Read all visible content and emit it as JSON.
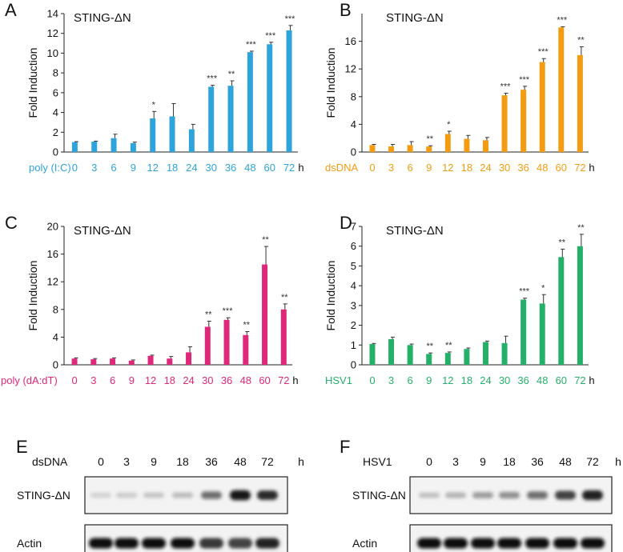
{
  "chart_data": [
    {
      "panel": "A",
      "type": "bar",
      "title": "STING-ΔN",
      "ylabel": "Fold Induction",
      "xlabel_prefix": "poly (I:C)",
      "x_unit": "h",
      "categories": [
        "0",
        "3",
        "6",
        "9",
        "12",
        "18",
        "24",
        "30",
        "36",
        "48",
        "60",
        "72"
      ],
      "values": [
        1.0,
        1.05,
        1.4,
        0.9,
        3.4,
        3.6,
        2.3,
        6.6,
        6.7,
        10.1,
        10.9,
        12.3
      ],
      "errors": [
        0.05,
        0.05,
        0.4,
        0.1,
        0.7,
        1.3,
        0.5,
        0.15,
        0.5,
        0.1,
        0.2,
        0.5
      ],
      "significance": [
        "",
        "",
        "",
        "",
        "*",
        "",
        "",
        "***",
        "**",
        "***",
        "***",
        "***"
      ],
      "ylim": [
        0,
        14
      ],
      "yticks": [
        0,
        2,
        4,
        6,
        8,
        10,
        12,
        14
      ],
      "color": "#2ea3dc",
      "label_color": "#2ea3dc"
    },
    {
      "panel": "B",
      "type": "bar",
      "title": "STING-ΔN",
      "ylabel": "Fold Induction",
      "xlabel_prefix": "dsDNA",
      "x_unit": "h",
      "categories": [
        "0",
        "3",
        "6",
        "9",
        "12",
        "18",
        "24",
        "30",
        "36",
        "48",
        "60",
        "72"
      ],
      "values": [
        1.0,
        0.8,
        1.0,
        0.8,
        2.6,
        1.9,
        1.7,
        8.2,
        9.0,
        13.0,
        18.0,
        14.0
      ],
      "errors": [
        0.1,
        0.3,
        0.5,
        0.1,
        0.4,
        0.5,
        0.4,
        0.3,
        0.5,
        0.5,
        0.1,
        1.2
      ],
      "significance": [
        "",
        "",
        "",
        "**",
        "*",
        "",
        "",
        "***",
        "***",
        "***",
        "***",
        "**"
      ],
      "ylim": [
        0,
        20
      ],
      "yticks": [
        0,
        4,
        8,
        12,
        16
      ],
      "color": "#f39c12",
      "label_color": "#f39c12"
    },
    {
      "panel": "C",
      "type": "bar",
      "title": "STING-ΔN",
      "ylabel": "Fold Induction",
      "xlabel_prefix": "poly (dA:dT)",
      "x_unit": "h",
      "categories": [
        "0",
        "3",
        "6",
        "9",
        "12",
        "18",
        "24",
        "30",
        "36",
        "48",
        "60",
        "72"
      ],
      "values": [
        0.9,
        0.8,
        0.9,
        0.6,
        1.3,
        0.9,
        1.8,
        5.5,
        6.5,
        4.3,
        14.5,
        8.0
      ],
      "errors": [
        0.1,
        0.1,
        0.1,
        0.1,
        0.1,
        0.3,
        0.8,
        0.8,
        0.3,
        0.5,
        2.6,
        0.8
      ],
      "significance": [
        "",
        "",
        "",
        "",
        "",
        "",
        "",
        "**",
        "***",
        "**",
        "**",
        "**"
      ],
      "ylim": [
        0,
        20
      ],
      "yticks": [
        0,
        4,
        8,
        12,
        16,
        20
      ],
      "color": "#e0287a",
      "label_color": "#e0287a"
    },
    {
      "panel": "D",
      "type": "bar",
      "title": "STING-ΔN",
      "ylabel": "Fold Induction",
      "xlabel_prefix": "HSV1",
      "x_unit": "h",
      "categories": [
        "0",
        "3",
        "6",
        "9",
        "12",
        "18",
        "24",
        "30",
        "36",
        "48",
        "60",
        "72"
      ],
      "values": [
        1.05,
        1.3,
        1.0,
        0.55,
        0.6,
        0.8,
        1.15,
        1.1,
        3.3,
        3.1,
        5.45,
        6.0
      ],
      "errors": [
        0.03,
        0.1,
        0.05,
        0.05,
        0.05,
        0.05,
        0.05,
        0.35,
        0.07,
        0.45,
        0.4,
        0.6
      ],
      "significance": [
        "",
        "",
        "",
        "**",
        "**",
        "",
        "",
        "",
        "***",
        "*",
        "**",
        "**"
      ],
      "ylim": [
        0,
        7
      ],
      "yticks": [
        0,
        1,
        2,
        3,
        4,
        5,
        6,
        7
      ],
      "color": "#25b06a",
      "label_color": "#25b06a"
    }
  ],
  "blots": [
    {
      "panel": "E",
      "treatment": "dsDNA",
      "unit": "h",
      "timepoints": [
        "0",
        "3",
        "9",
        "18",
        "36",
        "48",
        "72"
      ],
      "rows": [
        {
          "label": "STING-ΔN",
          "intensities": [
            0.12,
            0.15,
            0.18,
            0.22,
            0.55,
            0.95,
            0.85
          ]
        },
        {
          "label": "Actin",
          "intensities": [
            1.0,
            1.0,
            1.0,
            1.0,
            0.8,
            0.75,
            0.9
          ]
        }
      ]
    },
    {
      "panel": "F",
      "treatment": "HSV1",
      "unit": "h",
      "timepoints": [
        "0",
        "3",
        "9",
        "18",
        "36",
        "48",
        "72"
      ],
      "rows": [
        {
          "label": "STING-ΔN",
          "intensities": [
            0.2,
            0.25,
            0.35,
            0.4,
            0.55,
            0.75,
            0.9
          ]
        },
        {
          "label": "Actin",
          "intensities": [
            1.0,
            1.0,
            1.0,
            1.0,
            1.0,
            1.0,
            1.0
          ]
        }
      ]
    }
  ]
}
